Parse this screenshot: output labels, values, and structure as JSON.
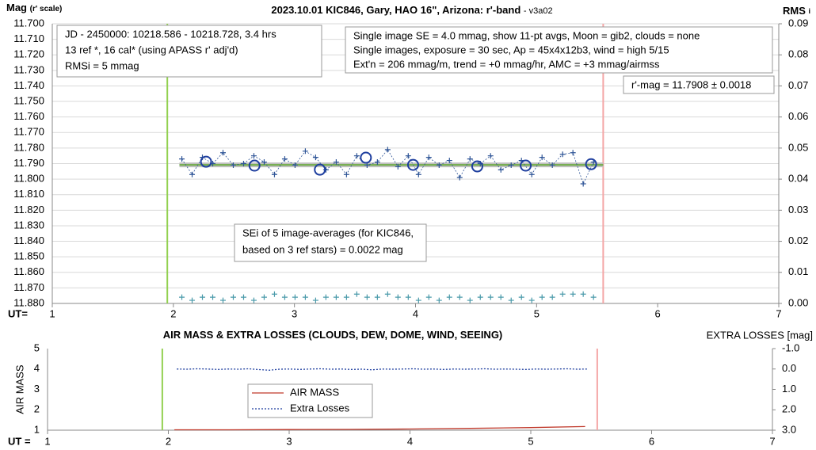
{
  "chart_data": [
    {
      "type": "scatter",
      "title": "2023.10.01 KIC846, Gary, HAO 16\", Arizona: r'-band",
      "subtitle": "- v3a02",
      "ylabel": "Mag",
      "ylabel_note": "(r' scale)",
      "y2label": "RMS",
      "y2label_sub": "i",
      "xlabel": "UT=",
      "xlim": [
        1,
        7
      ],
      "xticks": [
        1,
        2,
        3,
        4,
        5,
        6,
        7
      ],
      "ylim": [
        11.7,
        11.88
      ],
      "yreverse": true,
      "grid": true,
      "yticks": [
        {
          "value": 11.7,
          "label": "11.700"
        },
        {
          "value": 11.71,
          "label": "11.710"
        },
        {
          "value": 11.72,
          "label": "11.720"
        },
        {
          "value": 11.73,
          "label": "11.730"
        },
        {
          "value": 11.74,
          "label": "11.740"
        },
        {
          "value": 11.75,
          "label": "11.750"
        },
        {
          "value": 11.76,
          "label": "11.760"
        },
        {
          "value": 11.77,
          "label": "11.770"
        },
        {
          "value": 11.78,
          "label": "11.780"
        },
        {
          "value": 11.79,
          "label": "11.790"
        },
        {
          "value": 11.8,
          "label": "11.800"
        },
        {
          "value": 11.81,
          "label": "11.810"
        },
        {
          "value": 11.82,
          "label": "11.820"
        },
        {
          "value": 11.83,
          "label": "11.830"
        },
        {
          "value": 11.84,
          "label": "11.840"
        },
        {
          "value": 11.85,
          "label": "11.850"
        },
        {
          "value": 11.86,
          "label": "11.860"
        },
        {
          "value": 11.87,
          "label": "11.870"
        },
        {
          "value": 11.88,
          "label": "11.880"
        }
      ],
      "y2lim": [
        0,
        0.09
      ],
      "y2ticks": [
        {
          "value": 0,
          "label": "0.00"
        },
        0.01,
        0.02,
        0.03,
        0.04,
        0.05,
        0.06,
        0.07,
        0.08,
        0.09
      ],
      "vlines": [
        {
          "x": 1.95,
          "color": "#92d050"
        },
        {
          "x": 5.55,
          "color": "#f4a6a6"
        }
      ],
      "fit": {
        "value": 11.7908,
        "xrange": [
          2.05,
          5.55
        ]
      },
      "annotations": [
        {
          "lines": [
            "JD - 2450000: 10218.586 - 10218.728, 3.4 hrs",
            "13 ref *, 16 cal* (using APASS r' adj'd)",
            "RMSi = 5 mmag"
          ]
        },
        {
          "lines": [
            "Single image SE = 4.0 mmag, show  11-pt avgs, Moon = gib2, clouds = none",
            "Single images, exposure = 30 sec, Ap = 45x4x12b3, wind = high 5/15",
            " Ext'n = 206 mmag/m, trend = +0  mmag/hr, AMC = +3 mmag/airmss"
          ]
        },
        {
          "lines": [
            "r'-mag = 11.7908 ± 0.0018"
          ]
        },
        {
          "lines": [
            "SEi of 5 image-averages (for KIC846,",
            "based on 3 ref stars) = 0.0022 mag"
          ]
        }
      ],
      "series": [
        {
          "color": "#2f5597",
          "marker": "cross",
          "dashed": true,
          "x": [
            2.07,
            2.155,
            2.24,
            2.325,
            2.41,
            2.495,
            2.58,
            2.665,
            2.75,
            2.835,
            2.92,
            3.005,
            3.09,
            3.175,
            3.26,
            3.345,
            3.43,
            3.515,
            3.6,
            3.685,
            3.77,
            3.855,
            3.94,
            4.025,
            4.11,
            4.195,
            4.28,
            4.365,
            4.45,
            4.535,
            4.62,
            4.705,
            4.79,
            4.875,
            4.96,
            5.045,
            5.13,
            5.215,
            5.3,
            5.385,
            5.47
          ],
          "values": [
            11.787,
            11.797,
            11.786,
            11.79,
            11.783,
            11.791,
            11.79,
            11.785,
            11.789,
            11.797,
            11.787,
            11.791,
            11.782,
            11.786,
            11.794,
            11.789,
            11.797,
            11.785,
            11.791,
            11.789,
            11.781,
            11.792,
            11.785,
            11.797,
            11.786,
            11.791,
            11.788,
            11.799,
            11.787,
            11.79,
            11.785,
            11.794,
            11.791,
            11.788,
            11.797,
            11.786,
            11.791,
            11.784,
            11.783,
            11.803,
            11.789
          ]
        },
        {
          "color": "#1f3f9f",
          "marker": "circle",
          "x": [
            2.27,
            2.67,
            3.21,
            3.59,
            3.98,
            4.51,
            4.91,
            5.45
          ],
          "values": [
            11.7888,
            11.7913,
            11.7939,
            11.7862,
            11.7908,
            11.7918,
            11.7913,
            11.7904
          ]
        },
        {
          "color": "#4a9aaa",
          "marker": "cross",
          "axis": "y2",
          "x": [
            2.07,
            2.155,
            2.24,
            2.325,
            2.41,
            2.495,
            2.58,
            2.665,
            2.75,
            2.835,
            2.92,
            3.005,
            3.09,
            3.175,
            3.26,
            3.345,
            3.43,
            3.515,
            3.6,
            3.685,
            3.77,
            3.855,
            3.94,
            4.025,
            4.11,
            4.195,
            4.28,
            4.365,
            4.45,
            4.535,
            4.62,
            4.705,
            4.79,
            4.875,
            4.96,
            5.045,
            5.13,
            5.215,
            5.3,
            5.385,
            5.47
          ],
          "values": [
            0.002,
            0.001,
            0.002,
            0.002,
            0.001,
            0.002,
            0.002,
            0.001,
            0.002,
            0.003,
            0.002,
            0.002,
            0.002,
            0.001,
            0.002,
            0.002,
            0.002,
            0.003,
            0.002,
            0.002,
            0.003,
            0.002,
            0.002,
            0.001,
            0.002,
            0.001,
            0.002,
            0.002,
            0.001,
            0.002,
            0.002,
            0.002,
            0.001,
            0.002,
            0.001,
            0.002,
            0.002,
            0.003,
            0.003,
            0.003,
            0.002
          ]
        }
      ]
    },
    {
      "type": "line",
      "title": "AIR MASS & EXTRA LOSSES (CLOUDS, DEW, DOME, WIND, SEEING)",
      "ylabel": "AIR MASS",
      "y2label": "EXTRA LOSSES [mag]",
      "xlabel": "UT =",
      "xlim": [
        1,
        7
      ],
      "xticks": [
        1,
        2,
        3,
        4,
        5,
        6,
        7
      ],
      "ylim": [
        1,
        5
      ],
      "yticks": [
        1,
        2,
        3,
        4,
        5
      ],
      "y2lim": [
        -1,
        3
      ],
      "y2reverse": true,
      "y2ticks": [
        {
          "value": -1,
          "label": "-1.0"
        },
        {
          "value": 0,
          "label": "0.0"
        },
        {
          "value": 1,
          "label": "1.0"
        },
        {
          "value": 2,
          "label": "2.0"
        },
        {
          "value": 3,
          "label": "3.0"
        }
      ],
      "vlines": [
        {
          "x": 1.95,
          "color": "#92d050"
        },
        {
          "x": 5.55,
          "color": "#f4a6a6"
        }
      ],
      "series": [
        {
          "name": "AIR MASS",
          "color": "#c0392b",
          "x": [
            2.05,
            2.5,
            3,
            3.5,
            4,
            4.5,
            5,
            5.45
          ],
          "values": [
            1.02,
            1.02,
            1.03,
            1.04,
            1.06,
            1.09,
            1.13,
            1.18
          ]
        },
        {
          "name": "Extra Losses",
          "color": "#1f3f9f",
          "axis": "y2",
          "dashed": true,
          "x": [
            2.07,
            2.155,
            2.24,
            2.325,
            2.41,
            2.495,
            2.58,
            2.665,
            2.75,
            2.835,
            2.92,
            3.005,
            3.09,
            3.175,
            3.26,
            3.345,
            3.43,
            3.515,
            3.6,
            3.685,
            3.77,
            3.855,
            3.94,
            4.025,
            4.11,
            4.195,
            4.28,
            4.365,
            4.45,
            4.535,
            4.62,
            4.705,
            4.79,
            4.875,
            4.96,
            5.045,
            5.13,
            5.215,
            5.3,
            5.385,
            5.47
          ],
          "values": [
            0.0,
            0.01,
            -0.01,
            0.0,
            0.02,
            0.0,
            0.01,
            -0.01,
            0.03,
            0.06,
            0.01,
            0.0,
            0.02,
            0.0,
            -0.01,
            0.01,
            0.0,
            0.02,
            0.01,
            0.04,
            0.0,
            0.01,
            0.0,
            -0.01,
            0.01,
            0.0,
            0.02,
            0.0,
            0.01,
            0.0,
            -0.01,
            0.01,
            0.0,
            0.01,
            0.02,
            0.0,
            0.01,
            0.0,
            -0.01,
            0.01,
            0.0
          ]
        }
      ]
    }
  ]
}
